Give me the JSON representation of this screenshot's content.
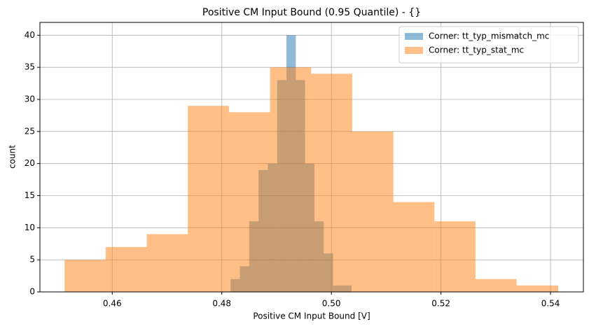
{
  "chart_data": {
    "type": "histogram",
    "title": "Positive CM Input Bound (0.95 Quantile) - {}",
    "xlabel": "Positive CM Input Bound [V]",
    "ylabel": "count",
    "xlim": [
      0.4468,
      0.546
    ],
    "ylim": [
      0,
      42
    ],
    "xticks": [
      0.46,
      0.48,
      {
        "value": 0.5,
        "label": "0.50"
      },
      0.52,
      0.54
    ],
    "yticks": [
      0,
      5,
      10,
      15,
      20,
      25,
      30,
      35,
      40
    ],
    "grid": true,
    "legend": "upper right",
    "opacity": 0.5,
    "series": [
      {
        "name": "Corner: tt_typ_mismatch_mc",
        "color": "#1f77b4",
        "bins": [
          0.4816,
          0.4833,
          0.485,
          0.4867,
          0.4884,
          0.4901,
          0.4918,
          0.4935,
          0.4952,
          0.4969,
          0.4986,
          0.5003,
          0.502,
          0.5037
        ],
        "values": [
          2,
          4,
          11,
          19,
          20,
          33,
          40,
          33,
          20,
          11,
          6,
          1,
          1
        ]
      },
      {
        "name": "Corner: tt_typ_stat_mc",
        "color": "#ff7f0e",
        "bins": [
          0.4513,
          0.4588,
          0.4663,
          0.4738,
          0.4813,
          0.4888,
          0.4963,
          0.5038,
          0.5113,
          0.5188,
          0.5263,
          0.5338,
          0.5414
        ],
        "values": [
          5,
          7,
          9,
          29,
          28,
          35,
          34,
          25,
          14,
          11,
          2,
          1
        ]
      }
    ]
  }
}
